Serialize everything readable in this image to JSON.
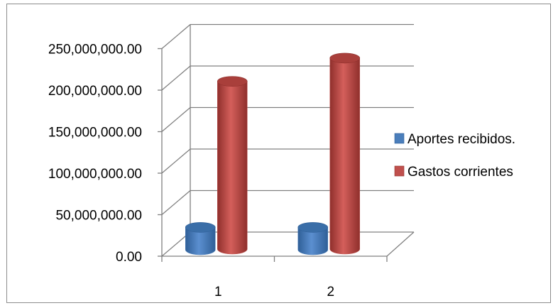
{
  "chart_data": {
    "type": "bar",
    "view": "3d-clustered-cylinder",
    "categories": [
      "1",
      "2"
    ],
    "series": [
      {
        "name": "Aportes recibidos.",
        "values": [
          27000000,
          27000000
        ],
        "color": "#4a7ebb"
      },
      {
        "name": "Gastos corrientes",
        "values": [
          202000000,
          230000000
        ],
        "color": "#c0504d"
      }
    ],
    "y_tick_labels": [
      "0.00",
      "50,000,000.00",
      "100,000,000.00",
      "150,000,000.00",
      "200,000,000.00",
      "250,000,000.00"
    ],
    "ylim": [
      0,
      250000000
    ],
    "y_step": 50000000,
    "grid": true,
    "legend_position": "right"
  }
}
